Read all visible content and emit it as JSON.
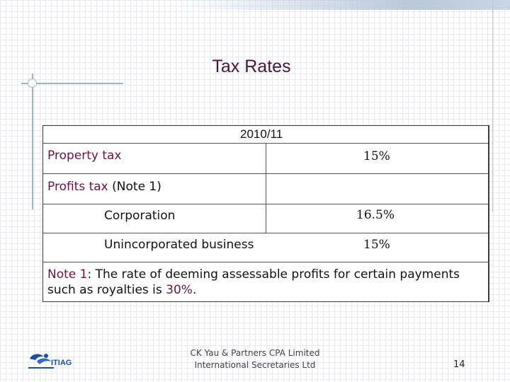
{
  "slide": {
    "title": "Tax Rates"
  },
  "table": {
    "header": "2010/11",
    "property_label": "Property tax",
    "property_rate": "15%",
    "profits_label": "Profits tax",
    "profits_note_ref": "(Note 1)",
    "corporation_label": "Corporation",
    "corporation_rate": "16.5%",
    "unincorporated_label": "Unincorporated business",
    "unincorporated_rate": "15%",
    "note_label": "Note 1",
    "note_text": ": The rate of deeming assessable profits for certain payments such as royalties is ",
    "note_value": "30%",
    "note_end": "."
  },
  "footer": {
    "line1": "CK Yau & Partners CPA Limited",
    "line2": "International Secretaries Ltd",
    "page_number": "14"
  },
  "logo": {
    "text": "ITIAG"
  },
  "colors": {
    "accent": "#6b1444",
    "title": "#4a1540",
    "grid": "#e6eaef",
    "logo_blue": "#1f4f9c"
  }
}
